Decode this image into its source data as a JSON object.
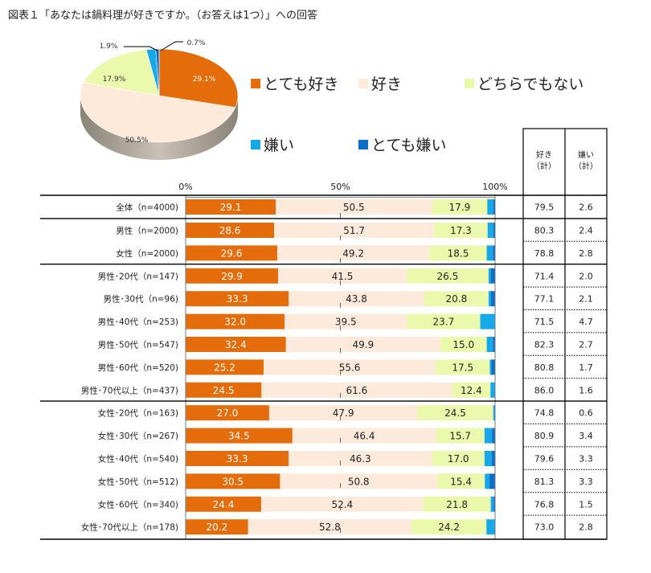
{
  "title": "図表１「あなたは鍋料理が好きですか。（お答えは1つ）」への回答",
  "colors": {
    "very_like": "#e46c0a",
    "like": "#fdeadb",
    "neutral": "#ebf9ad",
    "dislike": "#15a9e9",
    "very_dislike": "#0a6fc8"
  },
  "legend": [
    {
      "label": "とても好き",
      "color": "#e46c0a"
    },
    {
      "label": "好き",
      "color": "#fdeadb"
    },
    {
      "label": "どちらでもない",
      "color": "#ebf9ad"
    },
    {
      "label": "嫌い",
      "color": "#15a9e9"
    },
    {
      "label": "とても嫌い",
      "color": "#0a6fc8"
    }
  ],
  "table_headers": {
    "like_total": "好き\n（計）",
    "dislike_total": "嫌い\n（計）",
    "like_line1": "好き",
    "like_line2": "（計）",
    "dislike_line1": "嫌い",
    "dislike_line2": "（計）"
  },
  "chart_data": [
    {
      "type": "pie",
      "title": "",
      "labels": [
        "とても好き",
        "好き",
        "どちらでもない",
        "嫌い",
        "とても嫌い"
      ],
      "values": [
        29.1,
        50.5,
        17.9,
        1.9,
        0.7
      ],
      "value_labels": [
        "29.1%",
        "50.5%",
        "17.9%",
        "1.9%",
        "0.7%"
      ]
    },
    {
      "type": "bar",
      "orientation": "horizontal",
      "stacked": true,
      "xlim": [
        0,
        100
      ],
      "x_ticks": [
        "0%",
        "50%",
        "100%"
      ],
      "categories": [
        "全体（n=4000)",
        "男性（n=2000)",
        "女性（n=2000)",
        "男性･20代（n=147)",
        "男性･30代（n=96)",
        "男性･40代（n=253)",
        "男性･50代（n=547)",
        "男性･60代（n=520)",
        "男性･70代以上（n=437)",
        "女性･20代（n=163)",
        "女性･30代（n=267)",
        "女性･40代（n=540)",
        "女性･50代（n=512)",
        "女性･60代（n=340)",
        "女性･70代以上（n=178)"
      ],
      "series": [
        {
          "name": "とても好き",
          "values": [
            29.1,
            28.6,
            29.6,
            29.9,
            33.3,
            32.0,
            32.4,
            25.2,
            24.5,
            27.0,
            34.5,
            33.3,
            30.5,
            24.4,
            20.2
          ],
          "labels": [
            "29.1",
            "28.6",
            "29.6",
            "29.9",
            "33.3",
            "32.0",
            "32.4",
            "25.2",
            "24.5",
            "27.0",
            "34.5",
            "33.3",
            "30.5",
            "24.4",
            "20.2"
          ]
        },
        {
          "name": "好き",
          "values": [
            50.5,
            51.7,
            49.2,
            41.5,
            43.8,
            39.5,
            49.9,
            55.6,
            61.6,
            47.9,
            46.4,
            46.3,
            50.8,
            52.4,
            52.8
          ],
          "labels": [
            "50.5",
            "51.7",
            "49.2",
            "41.5",
            "43.8",
            "39.5",
            "49.9",
            "55.6",
            "61.6",
            "47.9",
            "46.4",
            "46.3",
            "50.8",
            "52.4",
            "52.8"
          ]
        },
        {
          "name": "どちらでもない",
          "values": [
            17.9,
            17.3,
            18.5,
            26.5,
            20.8,
            23.7,
            15.0,
            17.5,
            12.4,
            24.5,
            15.7,
            17.0,
            15.4,
            21.8,
            24.2
          ],
          "labels": [
            "17.9",
            "17.3",
            "18.5",
            "26.5",
            "20.8",
            "23.7",
            "15.0",
            "17.5",
            "12.4",
            "24.5",
            "15.7",
            "17.0",
            "15.4",
            "21.8",
            "24.2"
          ]
        },
        {
          "name": "嫌い",
          "values": [
            1.9,
            1.8,
            2.0,
            0.7,
            0.8,
            4.7,
            2.0,
            0.5,
            1.6,
            0.6,
            2.4,
            2.3,
            1.5,
            1.0,
            2.8
          ]
        },
        {
          "name": "とても嫌い",
          "values": [
            0.7,
            0.6,
            0.8,
            1.3,
            1.3,
            0.0,
            0.7,
            1.2,
            0.0,
            0.0,
            1.0,
            1.0,
            1.8,
            0.5,
            0.0
          ]
        }
      ],
      "like_total": [
        "79.5",
        "80.3",
        "78.8",
        "71.4",
        "77.1",
        "71.5",
        "82.3",
        "80.8",
        "86.0",
        "74.8",
        "80.9",
        "79.6",
        "81.3",
        "76.8",
        "73.0"
      ],
      "dislike_total": [
        "2.6",
        "2.4",
        "2.8",
        "2.0",
        "2.1",
        "4.7",
        "2.7",
        "1.7",
        "1.6",
        "0.6",
        "3.4",
        "3.3",
        "3.3",
        "1.5",
        "2.8"
      ],
      "groups": [
        [
          0,
          0
        ],
        [
          1,
          2
        ],
        [
          3,
          8
        ],
        [
          9,
          14
        ]
      ]
    }
  ]
}
